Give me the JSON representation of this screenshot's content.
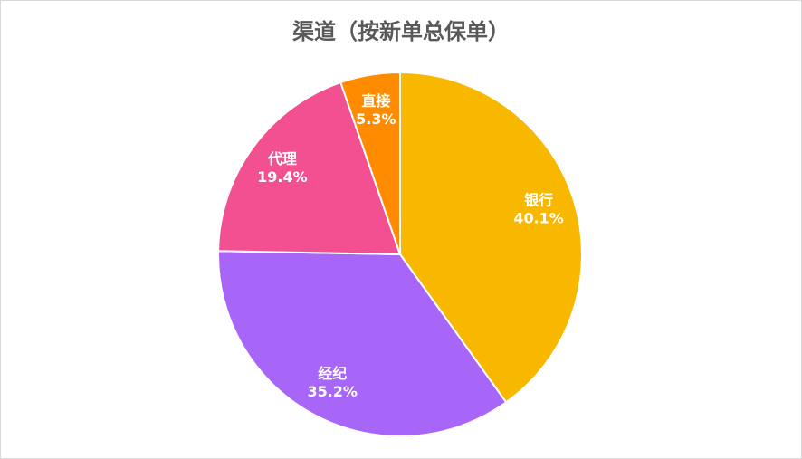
{
  "chart_data": {
    "type": "pie",
    "title": "渠道（按新单总保单）",
    "categories": [
      "银行",
      "经纪",
      "代理",
      "直接"
    ],
    "values": [
      40.1,
      35.2,
      19.4,
      5.3
    ],
    "value_labels": [
      "40.1%",
      "35.2%",
      "19.4%",
      "5.3%"
    ],
    "colors": [
      "#f9b800",
      "#a866f9",
      "#f25090",
      "#ff8c00"
    ]
  }
}
